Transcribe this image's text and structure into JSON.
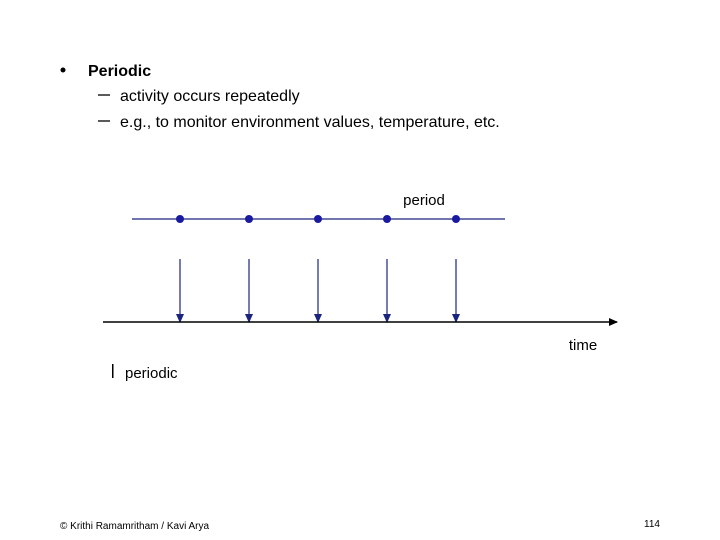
{
  "slide": {
    "bullet": {
      "title": "Periodic",
      "items": [
        "activity occurs repeatedly",
        "e.g., to monitor environment values, temperature, etc."
      ]
    },
    "diagram": {
      "period_label": "period",
      "time_label": "time",
      "caption": "periodic"
    },
    "footer": {
      "credit": "© Krithi Ramamritham / Kavi Arya",
      "page": "114"
    }
  }
}
